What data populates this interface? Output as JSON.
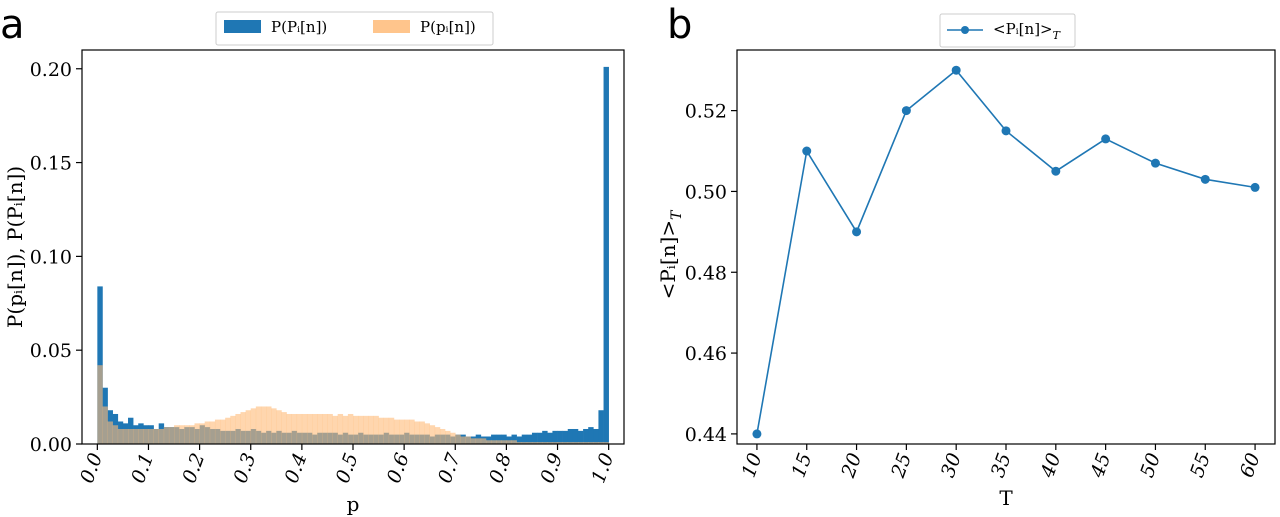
{
  "panels": {
    "a": "a",
    "b": "b"
  },
  "chart_data": [
    {
      "type": "bar",
      "panel": "a",
      "title": "",
      "xlabel": "p",
      "ylabel": "P(pᵢ[n]), P(Pᵢ[n])",
      "xlim": [
        -0.03,
        1.03
      ],
      "ylim": [
        0,
        0.21
      ],
      "xticks": [
        "0.0",
        "0.1",
        "0.2",
        "0.3",
        "0.4",
        "0.5",
        "0.6",
        "0.7",
        "0.8",
        "0.9",
        "1.0"
      ],
      "yticks": [
        "0.00",
        "0.05",
        "0.10",
        "0.15",
        "0.20"
      ],
      "legend_position": "top-center",
      "bin_width": 0.01,
      "bin_starts": [
        0.0,
        0.01,
        0.02,
        0.03,
        0.04,
        0.05,
        0.06,
        0.07,
        0.08,
        0.09,
        0.1,
        0.11,
        0.12,
        0.13,
        0.14,
        0.15,
        0.16,
        0.17,
        0.18,
        0.19,
        0.2,
        0.21,
        0.22,
        0.23,
        0.24,
        0.25,
        0.26,
        0.27,
        0.28,
        0.29,
        0.3,
        0.31,
        0.32,
        0.33,
        0.34,
        0.35,
        0.36,
        0.37,
        0.38,
        0.39,
        0.4,
        0.41,
        0.42,
        0.43,
        0.44,
        0.45,
        0.46,
        0.47,
        0.48,
        0.49,
        0.5,
        0.51,
        0.52,
        0.53,
        0.54,
        0.55,
        0.56,
        0.57,
        0.58,
        0.59,
        0.6,
        0.61,
        0.62,
        0.63,
        0.64,
        0.65,
        0.66,
        0.67,
        0.68,
        0.69,
        0.7,
        0.71,
        0.72,
        0.73,
        0.74,
        0.75,
        0.76,
        0.77,
        0.78,
        0.79,
        0.8,
        0.81,
        0.82,
        0.83,
        0.84,
        0.85,
        0.86,
        0.87,
        0.88,
        0.89,
        0.9,
        0.91,
        0.92,
        0.93,
        0.94,
        0.95,
        0.96,
        0.97,
        0.98,
        0.99
      ],
      "series": [
        {
          "name": "P(Pᵢ[n])",
          "color": "#1f77b4",
          "values": [
            0.084,
            0.03,
            0.018,
            0.016,
            0.012,
            0.011,
            0.014,
            0.01,
            0.011,
            0.01,
            0.01,
            0.008,
            0.011,
            0.009,
            0.009,
            0.009,
            0.008,
            0.009,
            0.009,
            0.008,
            0.01,
            0.009,
            0.008,
            0.008,
            0.007,
            0.007,
            0.007,
            0.008,
            0.007,
            0.007,
            0.008,
            0.007,
            0.006,
            0.007,
            0.006,
            0.007,
            0.006,
            0.006,
            0.007,
            0.006,
            0.006,
            0.006,
            0.005,
            0.006,
            0.006,
            0.006,
            0.006,
            0.005,
            0.006,
            0.005,
            0.005,
            0.006,
            0.005,
            0.005,
            0.005,
            0.005,
            0.006,
            0.005,
            0.005,
            0.005,
            0.006,
            0.005,
            0.005,
            0.005,
            0.005,
            0.004,
            0.005,
            0.005,
            0.005,
            0.004,
            0.005,
            0.005,
            0.004,
            0.004,
            0.005,
            0.004,
            0.004,
            0.005,
            0.005,
            0.005,
            0.004,
            0.005,
            0.004,
            0.005,
            0.005,
            0.006,
            0.006,
            0.007,
            0.006,
            0.007,
            0.007,
            0.007,
            0.008,
            0.008,
            0.007,
            0.008,
            0.009,
            0.008,
            0.018,
            0.201
          ]
        },
        {
          "name": "P(pᵢ[n])",
          "color": "#ffbb78",
          "values": [
            0.042,
            0.02,
            0.012,
            0.01,
            0.008,
            0.008,
            0.008,
            0.008,
            0.008,
            0.008,
            0.008,
            0.008,
            0.008,
            0.009,
            0.009,
            0.01,
            0.01,
            0.01,
            0.01,
            0.011,
            0.011,
            0.012,
            0.012,
            0.013,
            0.013,
            0.014,
            0.015,
            0.016,
            0.017,
            0.018,
            0.019,
            0.02,
            0.02,
            0.02,
            0.019,
            0.018,
            0.017,
            0.016,
            0.016,
            0.016,
            0.016,
            0.016,
            0.016,
            0.016,
            0.016,
            0.016,
            0.015,
            0.016,
            0.015,
            0.016,
            0.015,
            0.015,
            0.015,
            0.015,
            0.015,
            0.014,
            0.014,
            0.014,
            0.013,
            0.013,
            0.013,
            0.013,
            0.012,
            0.012,
            0.011,
            0.01,
            0.009,
            0.008,
            0.007,
            0.006,
            0.005,
            0.004,
            0.004,
            0.003,
            0.003,
            0.003,
            0.002,
            0.002,
            0.002,
            0.002,
            0.002,
            0.002,
            0.001,
            0.001,
            0.001,
            0.001,
            0.001,
            0.001,
            0.001,
            0.001,
            0.001,
            0.001,
            0.001,
            0.001,
            0.001,
            0.001,
            0.001,
            0.001,
            0.001,
            0.001
          ]
        }
      ]
    },
    {
      "type": "line",
      "panel": "b",
      "title": "",
      "xlabel": "T",
      "ylabel": "<Pᵢ[n]>",
      "ylabel_sub": "T",
      "xlim": [
        8,
        62
      ],
      "ylim": [
        0.4375,
        0.535
      ],
      "xticks": [
        "10",
        "15",
        "20",
        "25",
        "30",
        "35",
        "40",
        "45",
        "50",
        "55",
        "60"
      ],
      "yticks": [
        "0.44",
        "0.46",
        "0.48",
        "0.50",
        "0.52"
      ],
      "legend_position": "top-center",
      "series": [
        {
          "name": "<Pᵢ[n]>",
          "name_sub": "T",
          "color": "#1f77b4",
          "x": [
            10,
            15,
            20,
            25,
            30,
            35,
            40,
            45,
            50,
            55,
            60
          ],
          "y": [
            0.44,
            0.51,
            0.49,
            0.52,
            0.53,
            0.515,
            0.505,
            0.513,
            0.507,
            0.503,
            0.501
          ]
        }
      ]
    }
  ]
}
